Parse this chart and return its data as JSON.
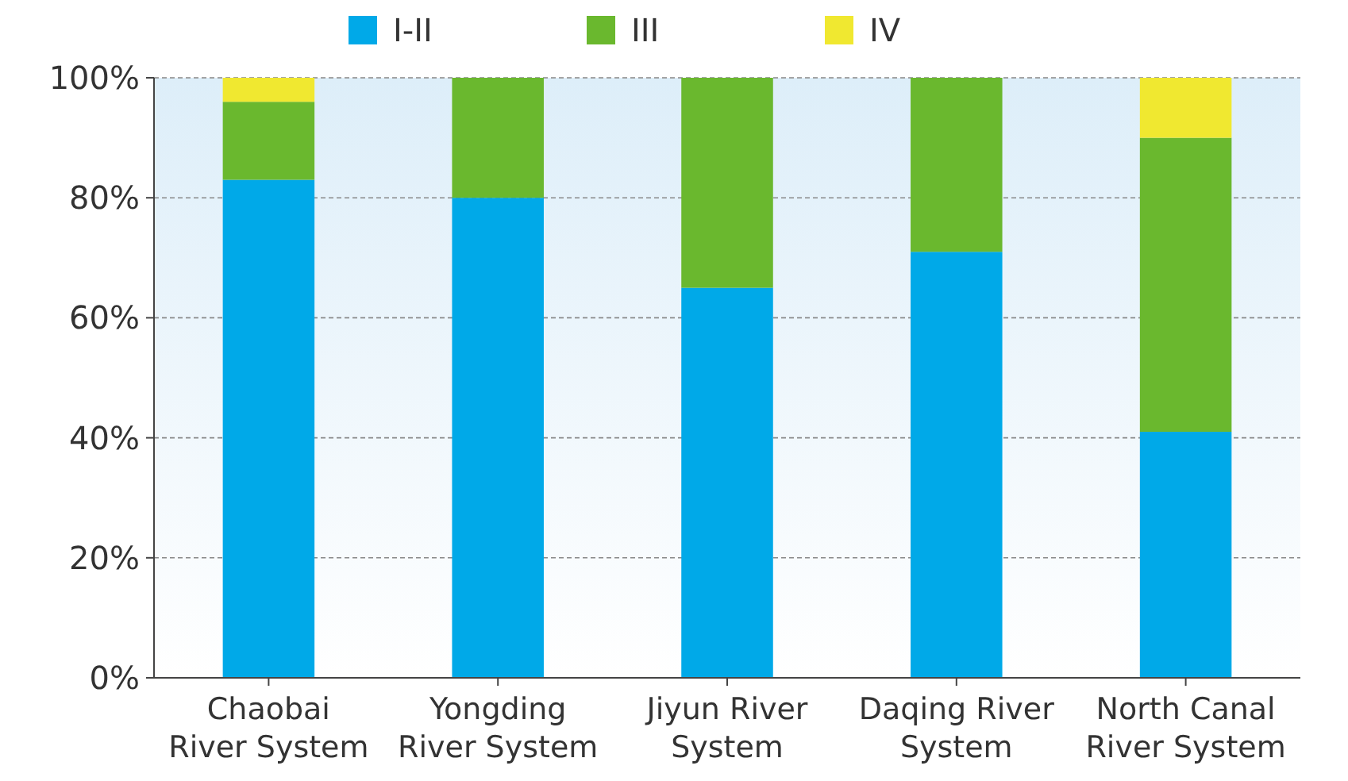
{
  "chart_data": {
    "type": "bar",
    "stacked": true,
    "categories": [
      "Chaobai River System",
      "Yongding River System",
      "Jiyun River System",
      "Daqing River System",
      "North Canal River System"
    ],
    "series": [
      {
        "name": "I-II",
        "color": "#00a9e8",
        "values": [
          83,
          80,
          65,
          71,
          41
        ]
      },
      {
        "name": "III",
        "color": "#6ab82e",
        "values": [
          13,
          20,
          35,
          29,
          49
        ]
      },
      {
        "name": "IV",
        "color": "#f0e830",
        "values": [
          4,
          0,
          0,
          0,
          10
        ]
      }
    ],
    "ylim": [
      0,
      100
    ],
    "yticks": [
      {
        "value": 0,
        "label": "0%"
      },
      {
        "value": 20,
        "label": "20%"
      },
      {
        "value": 40,
        "label": "40%"
      },
      {
        "value": 60,
        "label": "60%"
      },
      {
        "value": 80,
        "label": "80%"
      },
      {
        "value": 100,
        "label": "100%"
      }
    ],
    "grid": "y",
    "legend": "top"
  }
}
